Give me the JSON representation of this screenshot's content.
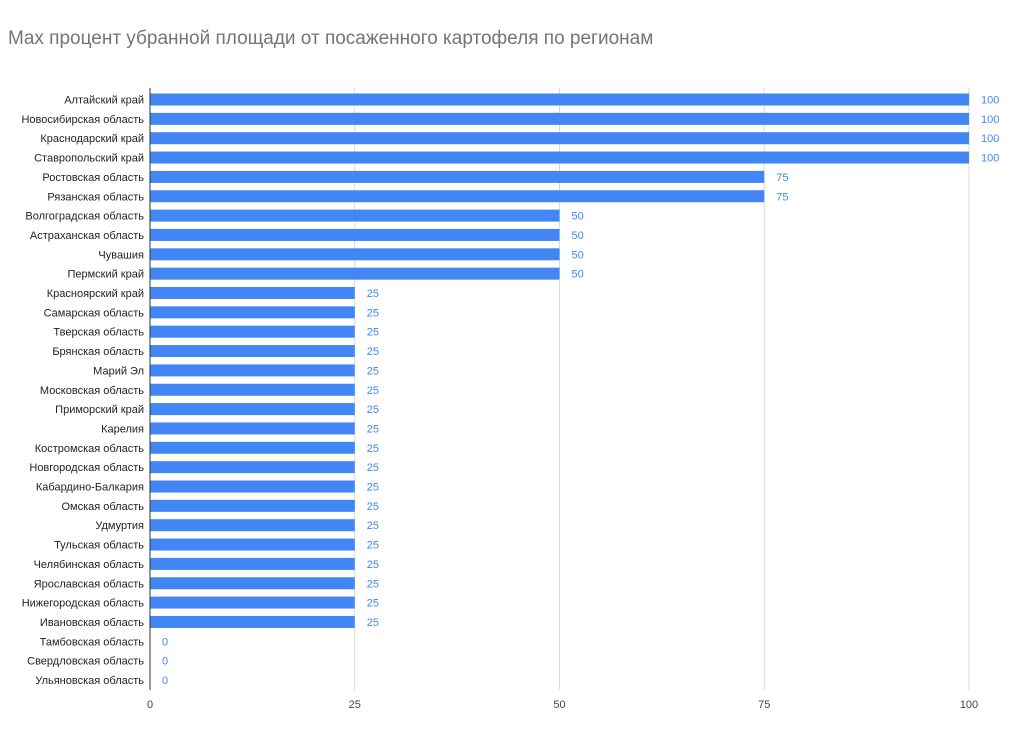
{
  "chart_data": {
    "type": "bar",
    "orientation": "horizontal",
    "title": "Max процент убранной площади от посаженного картофеля по регионам",
    "categories": [
      "Алтайский край",
      "Новосибирская область",
      "Краснодарский край",
      "Ставропольский край",
      "Ростовская область",
      "Рязанская область",
      "Волгоградская область",
      "Астраханская область",
      "Чувашия",
      "Пермский край",
      "Красноярский край",
      "Самарская область",
      "Тверская область",
      "Брянская область",
      "Марий Эл",
      "Московская область",
      "Приморский край",
      "Карелия",
      "Костромская область",
      "Новгородская область",
      "Кабардино-Балкария",
      "Омская область",
      "Удмуртия",
      "Тульская область",
      "Челябинская область",
      "Ярославская область",
      "Нижегородская область",
      "Ивановская область",
      "Тамбовская область",
      "Свердловская область",
      "Ульяновская область"
    ],
    "values": [
      100,
      100,
      100,
      100,
      75,
      75,
      50,
      50,
      50,
      50,
      25,
      25,
      25,
      25,
      25,
      25,
      25,
      25,
      25,
      25,
      25,
      25,
      25,
      25,
      25,
      25,
      25,
      25,
      0,
      0,
      0
    ],
    "data_labels": [
      "100",
      "100",
      "100",
      "100",
      "75",
      "75",
      "50",
      "50",
      "50",
      "50",
      "25",
      "25",
      "25",
      "25",
      "25",
      "25",
      "25",
      "25",
      "25",
      "25",
      "25",
      "25",
      "25",
      "25",
      "25",
      "25",
      "25",
      "25",
      "0",
      "0",
      "0"
    ],
    "x_ticks": [
      "0",
      "25",
      "50",
      "75",
      "100"
    ],
    "xlim": [
      0,
      100
    ],
    "xlabel": "",
    "ylabel": "",
    "grid": true,
    "legend": "none",
    "bar_color": "#4285f4",
    "label_color": "#4285f4"
  }
}
